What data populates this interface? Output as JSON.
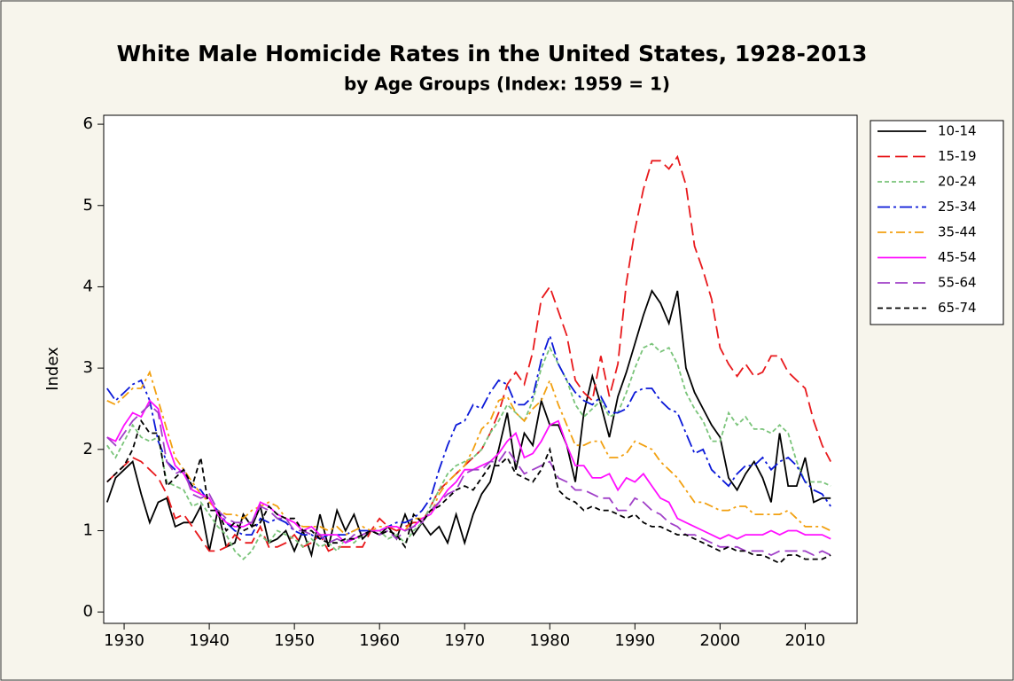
{
  "chart_data": {
    "type": "line",
    "title": "White Male Homicide Rates in the United States, 1928-2013",
    "subtitle": "by Age Groups (Index: 1959 = 1)",
    "y_label": "Index",
    "x": [
      1928,
      1929,
      1930,
      1931,
      1932,
      1933,
      1934,
      1935,
      1936,
      1937,
      1938,
      1939,
      1940,
      1941,
      1942,
      1943,
      1944,
      1945,
      1946,
      1947,
      1948,
      1949,
      1950,
      1951,
      1952,
      1953,
      1954,
      1955,
      1956,
      1957,
      1958,
      1959,
      1960,
      1961,
      1962,
      1963,
      1964,
      1965,
      1966,
      1967,
      1968,
      1969,
      1970,
      1971,
      1972,
      1973,
      1974,
      1975,
      1976,
      1977,
      1978,
      1979,
      1980,
      1981,
      1982,
      1983,
      1984,
      1985,
      1986,
      1987,
      1988,
      1989,
      1990,
      1991,
      1992,
      1993,
      1994,
      1995,
      1996,
      1997,
      1998,
      1999,
      2000,
      2001,
      2002,
      2003,
      2004,
      2005,
      2006,
      2007,
      2008,
      2009,
      2010,
      2011,
      2012,
      2013
    ],
    "xlim": [
      1927.6,
      2016.1
    ],
    "xticks": [
      1930,
      1940,
      1950,
      1960,
      1970,
      1980,
      1990,
      2000,
      2010
    ],
    "ylim": [
      -0.14,
      6.11
    ],
    "yticks": [
      0,
      1,
      2,
      3,
      4,
      5,
      6
    ],
    "legend": "right",
    "series": [
      {
        "name": "10-14",
        "color": "#000000",
        "style": "solid",
        "values": [
          1.35,
          1.65,
          1.75,
          1.85,
          1.45,
          1.1,
          1.35,
          1.4,
          1.05,
          1.1,
          1.1,
          1.3,
          0.75,
          1.25,
          0.8,
          0.85,
          1.2,
          1.05,
          1.3,
          0.85,
          0.9,
          1.0,
          0.75,
          1.0,
          0.7,
          1.2,
          0.8,
          1.25,
          1.0,
          1.2,
          0.9,
          1.0,
          0.95,
          1.05,
          0.9,
          1.2,
          0.95,
          1.1,
          0.95,
          1.05,
          0.85,
          1.2,
          0.85,
          1.2,
          1.45,
          1.6,
          2.0,
          2.45,
          1.75,
          2.2,
          2.05,
          2.6,
          2.3,
          2.3,
          2.05,
          1.6,
          2.45,
          2.9,
          2.55,
          2.15,
          2.65,
          2.95,
          3.3,
          3.65,
          3.95,
          3.8,
          3.55,
          3.95,
          3.0,
          2.7,
          2.5,
          2.3,
          2.15,
          1.65,
          1.5,
          1.7,
          1.85,
          1.65,
          1.35,
          2.2,
          1.55,
          1.55,
          1.9,
          1.35,
          1.4,
          1.4
        ]
      },
      {
        "name": "15-19",
        "color": "#e8191c",
        "style": "longdash",
        "values": [
          1.6,
          1.7,
          1.8,
          1.9,
          1.85,
          1.75,
          1.65,
          1.45,
          1.15,
          1.2,
          1.05,
          0.9,
          0.75,
          0.75,
          0.8,
          0.95,
          0.85,
          0.85,
          1.05,
          0.8,
          0.8,
          0.85,
          0.95,
          0.8,
          0.85,
          0.95,
          0.75,
          0.8,
          0.8,
          0.8,
          0.8,
          1.0,
          1.15,
          1.05,
          1.0,
          1.05,
          1.1,
          1.1,
          1.3,
          1.5,
          1.6,
          1.7,
          1.8,
          1.9,
          2.0,
          2.2,
          2.45,
          2.8,
          2.95,
          2.8,
          3.2,
          3.85,
          4.0,
          3.7,
          3.4,
          2.85,
          2.7,
          2.6,
          3.15,
          2.65,
          3.05,
          4.05,
          4.7,
          5.2,
          5.55,
          5.55,
          5.45,
          5.6,
          5.25,
          4.5,
          4.2,
          3.85,
          3.25,
          3.05,
          2.9,
          3.05,
          2.9,
          2.95,
          3.15,
          3.15,
          2.95,
          2.85,
          2.75,
          2.35,
          2.05,
          1.85
        ]
      },
      {
        "name": "20-24",
        "color": "#7ac47a",
        "style": "shortdash",
        "values": [
          2.05,
          1.9,
          2.1,
          2.3,
          2.15,
          2.1,
          2.15,
          1.6,
          1.55,
          1.5,
          1.3,
          1.35,
          1.2,
          1.05,
          0.95,
          0.75,
          0.65,
          0.75,
          0.95,
          0.85,
          1.0,
          0.95,
          0.9,
          0.8,
          0.9,
          0.8,
          0.85,
          0.75,
          0.9,
          0.85,
          0.95,
          1.0,
          1.0,
          0.9,
          0.95,
          0.85,
          1.0,
          1.1,
          1.3,
          1.5,
          1.7,
          1.8,
          1.85,
          1.9,
          2.0,
          2.2,
          2.35,
          2.55,
          2.45,
          2.35,
          2.6,
          3.0,
          3.25,
          3.05,
          2.85,
          2.55,
          2.4,
          2.5,
          2.6,
          2.4,
          2.45,
          2.7,
          3.0,
          3.25,
          3.3,
          3.2,
          3.25,
          3.05,
          2.7,
          2.5,
          2.35,
          2.1,
          2.1,
          2.45,
          2.3,
          2.4,
          2.25,
          2.25,
          2.2,
          2.3,
          2.2,
          1.85,
          1.6,
          1.6,
          1.6,
          1.55
        ]
      },
      {
        "name": "25-34",
        "color": "#0a18d8",
        "style": "dashdot",
        "values": [
          2.75,
          2.6,
          2.7,
          2.8,
          2.85,
          2.6,
          2.1,
          1.85,
          1.75,
          1.7,
          1.55,
          1.5,
          1.35,
          1.25,
          1.1,
          1.0,
          0.95,
          0.95,
          1.15,
          1.1,
          1.15,
          1.1,
          1.0,
          0.95,
          0.95,
          0.9,
          0.95,
          0.95,
          0.95,
          1.0,
          1.0,
          1.0,
          1.0,
          1.05,
          1.1,
          1.1,
          1.15,
          1.25,
          1.4,
          1.75,
          2.05,
          2.3,
          2.35,
          2.55,
          2.5,
          2.7,
          2.85,
          2.8,
          2.55,
          2.55,
          2.65,
          3.1,
          3.4,
          3.05,
          2.85,
          2.7,
          2.6,
          2.55,
          2.65,
          2.45,
          2.45,
          2.5,
          2.7,
          2.75,
          2.75,
          2.6,
          2.5,
          2.45,
          2.2,
          1.95,
          2.0,
          1.75,
          1.65,
          1.55,
          1.7,
          1.8,
          1.8,
          1.9,
          1.75,
          1.85,
          1.9,
          1.8,
          1.6,
          1.5,
          1.45,
          1.3
        ]
      },
      {
        "name": "35-44",
        "color": "#f2a010",
        "style": "dashdot2",
        "values": [
          2.6,
          2.55,
          2.65,
          2.75,
          2.75,
          2.95,
          2.6,
          2.25,
          1.9,
          1.75,
          1.6,
          1.45,
          1.35,
          1.25,
          1.2,
          1.2,
          1.15,
          1.25,
          1.3,
          1.35,
          1.3,
          1.15,
          1.1,
          1.05,
          1.05,
          1.05,
          1.0,
          1.05,
          0.95,
          1.0,
          1.05,
          1.0,
          1.05,
          1.05,
          1.05,
          1.0,
          1.15,
          1.15,
          1.2,
          1.45,
          1.6,
          1.7,
          1.8,
          2.0,
          2.25,
          2.35,
          2.6,
          2.65,
          2.45,
          2.35,
          2.5,
          2.6,
          2.85,
          2.55,
          2.3,
          2.05,
          2.05,
          2.1,
          2.1,
          1.9,
          1.9,
          1.95,
          2.1,
          2.05,
          2.0,
          1.85,
          1.75,
          1.65,
          1.5,
          1.35,
          1.35,
          1.3,
          1.25,
          1.25,
          1.3,
          1.3,
          1.2,
          1.2,
          1.2,
          1.2,
          1.25,
          1.15,
          1.05,
          1.05,
          1.05,
          1.0
        ]
      },
      {
        "name": "45-54",
        "color": "#ff10ff",
        "style": "solid",
        "values": [
          2.15,
          2.1,
          2.3,
          2.45,
          2.4,
          2.6,
          2.5,
          2.1,
          1.8,
          1.7,
          1.5,
          1.45,
          1.4,
          1.2,
          1.1,
          1.05,
          1.05,
          1.1,
          1.35,
          1.3,
          1.2,
          1.15,
          1.1,
          1.0,
          1.05,
          0.95,
          0.95,
          0.95,
          0.85,
          0.9,
          0.95,
          1.0,
          1.0,
          1.05,
          1.05,
          1.0,
          1.05,
          1.15,
          1.2,
          1.35,
          1.5,
          1.6,
          1.75,
          1.75,
          1.8,
          1.85,
          1.95,
          2.1,
          2.2,
          1.9,
          1.95,
          2.1,
          2.3,
          2.35,
          2.05,
          1.8,
          1.8,
          1.65,
          1.65,
          1.7,
          1.5,
          1.65,
          1.6,
          1.7,
          1.55,
          1.4,
          1.35,
          1.15,
          1.1,
          1.05,
          1.0,
          0.95,
          0.9,
          0.95,
          0.9,
          0.95,
          0.95,
          0.95,
          1.0,
          0.95,
          1.0,
          1.0,
          0.95,
          0.95,
          0.95,
          0.9
        ]
      },
      {
        "name": "55-64",
        "color": "#a040c8",
        "style": "longdash",
        "values": [
          2.15,
          2.05,
          2.2,
          2.35,
          2.45,
          2.55,
          2.45,
          1.85,
          1.7,
          1.75,
          1.45,
          1.4,
          1.45,
          1.25,
          1.15,
          1.1,
          1.1,
          1.1,
          1.3,
          1.25,
          1.15,
          1.15,
          1.0,
          1.0,
          0.95,
          0.95,
          0.85,
          0.9,
          0.85,
          0.95,
          0.95,
          1.0,
          0.95,
          1.0,
          0.9,
          1.0,
          1.05,
          1.1,
          1.25,
          1.35,
          1.45,
          1.5,
          1.7,
          1.75,
          1.75,
          1.85,
          1.85,
          2.0,
          1.85,
          1.7,
          1.75,
          1.8,
          1.85,
          1.65,
          1.6,
          1.5,
          1.5,
          1.45,
          1.4,
          1.4,
          1.25,
          1.25,
          1.4,
          1.35,
          1.25,
          1.2,
          1.1,
          1.05,
          0.95,
          0.95,
          0.9,
          0.85,
          0.8,
          0.8,
          0.8,
          0.75,
          0.75,
          0.75,
          0.7,
          0.75,
          0.75,
          0.75,
          0.75,
          0.7,
          0.75,
          0.7
        ]
      },
      {
        "name": "65-74",
        "color": "#000000",
        "style": "dashed",
        "values": [
          1.6,
          1.7,
          1.8,
          2.0,
          2.35,
          2.2,
          2.2,
          1.55,
          1.65,
          1.75,
          1.55,
          1.9,
          1.25,
          1.25,
          1.0,
          1.1,
          1.0,
          1.05,
          1.1,
          1.3,
          1.2,
          1.15,
          1.15,
          1.0,
          1.0,
          0.9,
          0.85,
          0.85,
          0.9,
          0.9,
          0.95,
          1.0,
          0.95,
          1.0,
          0.95,
          0.8,
          1.2,
          1.1,
          1.25,
          1.3,
          1.4,
          1.5,
          1.55,
          1.5,
          1.65,
          1.8,
          1.8,
          1.9,
          1.7,
          1.65,
          1.6,
          1.75,
          2.0,
          1.5,
          1.4,
          1.35,
          1.25,
          1.3,
          1.25,
          1.25,
          1.2,
          1.15,
          1.2,
          1.1,
          1.05,
          1.05,
          1.0,
          0.95,
          0.95,
          0.9,
          0.85,
          0.8,
          0.75,
          0.8,
          0.75,
          0.75,
          0.7,
          0.7,
          0.65,
          0.6,
          0.7,
          0.7,
          0.65,
          0.65,
          0.65,
          0.7
        ]
      }
    ]
  }
}
